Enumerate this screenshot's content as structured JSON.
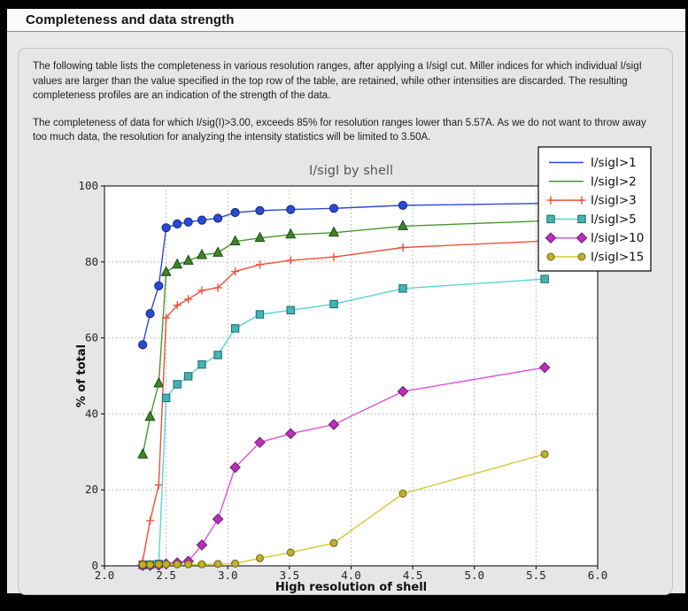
{
  "header": {
    "title": "Completeness and data strength"
  },
  "body": {
    "paragraph1": "The following table lists the completeness in various resolution ranges, after applying a I/sigI cut. Miller indices for which individual I/sigI values are larger than the value specified in the top row of the table, are retained, while other intensities are discarded. The resulting completeness profiles are an indication of the strength of the data.",
    "paragraph2": "The completeness of data for which I/sig(I)>3.00, exceeds  85% for resolution ranges lower than 5.57A. As we do not want to throw away too much data, the resolution for analyzing the intensity statistics will be limited to 3.50A."
  },
  "chart_data": {
    "type": "line",
    "title": "I/sigI by shell",
    "xlabel": "High resolution of shell",
    "ylabel": "% of total",
    "xlim": [
      2.0,
      6.0
    ],
    "ylim": [
      0,
      100
    ],
    "xticks": [
      2.0,
      2.5,
      3.0,
      3.5,
      4.0,
      4.5,
      5.0,
      5.5,
      6.0
    ],
    "yticks": [
      0,
      20,
      40,
      60,
      80,
      100
    ],
    "grid": true,
    "legend_position": "top-right",
    "title_color": "#555555",
    "x": [
      2.31,
      2.37,
      2.44,
      2.5,
      2.59,
      2.68,
      2.79,
      2.92,
      3.06,
      3.26,
      3.51,
      3.86,
      4.42,
      5.57
    ],
    "series": [
      {
        "name": "I/sigI>1",
        "color": "#2b49d8",
        "marker": "circle",
        "marker_size": 4.6,
        "marker_fill": "#2b49d8",
        "marker_edge": "#16267f",
        "values": [
          58.2,
          66.4,
          73.7,
          89.0,
          90.0,
          90.5,
          91.0,
          91.5,
          93.0,
          93.5,
          93.8,
          94.1,
          94.9,
          95.4
        ]
      },
      {
        "name": "I/sigI>2",
        "color": "#46982e",
        "marker": "triangle",
        "marker_size": 5.2,
        "marker_fill": "#3d8528",
        "marker_edge": "#1c4a12",
        "values": [
          29.3,
          39.2,
          48.0,
          77.3,
          79.3,
          80.3,
          81.8,
          82.4,
          85.4,
          86.3,
          87.2,
          87.7,
          89.4,
          90.8
        ]
      },
      {
        "name": "I/sigI>3",
        "color": "#ef5038",
        "marker": "plus",
        "marker_size": 4.6,
        "marker_fill": "#ef5038",
        "marker_edge": "#ef5038",
        "values": [
          1.3,
          11.9,
          21.3,
          65.3,
          68.6,
          70.2,
          72.5,
          73.2,
          77.5,
          79.3,
          80.4,
          81.3,
          83.8,
          85.5
        ]
      },
      {
        "name": "I/sigI>5",
        "color": "#58d4d8",
        "marker": "square",
        "marker_size": 4.2,
        "marker_fill": "#47b2b4",
        "marker_edge": "#176a6d",
        "values": [
          0.2,
          0.3,
          0.5,
          44.2,
          47.8,
          49.9,
          53.0,
          55.5,
          62.5,
          66.2,
          67.3,
          68.9,
          73.0,
          75.5
        ]
      },
      {
        "name": "I/sigI>10",
        "color": "#de52de",
        "marker": "diamond",
        "marker_size": 5.6,
        "marker_fill": "#bc2ebc",
        "marker_edge": "#6a1a6e",
        "values": [
          0.1,
          0.1,
          0.2,
          0.5,
          0.8,
          1.2,
          5.5,
          12.3,
          25.9,
          32.5,
          34.8,
          37.2,
          45.9,
          52.2
        ]
      },
      {
        "name": "I/sigI>15",
        "color": "#d6c832",
        "marker": "circle",
        "marker_size": 4.0,
        "marker_fill": "#c0b02c",
        "marker_edge": "#6d6414",
        "values": [
          0.3,
          0.3,
          0.4,
          0.4,
          0.4,
          0.4,
          0.4,
          0.5,
          0.6,
          2.0,
          3.5,
          6.0,
          19.0,
          29.4
        ]
      }
    ]
  }
}
